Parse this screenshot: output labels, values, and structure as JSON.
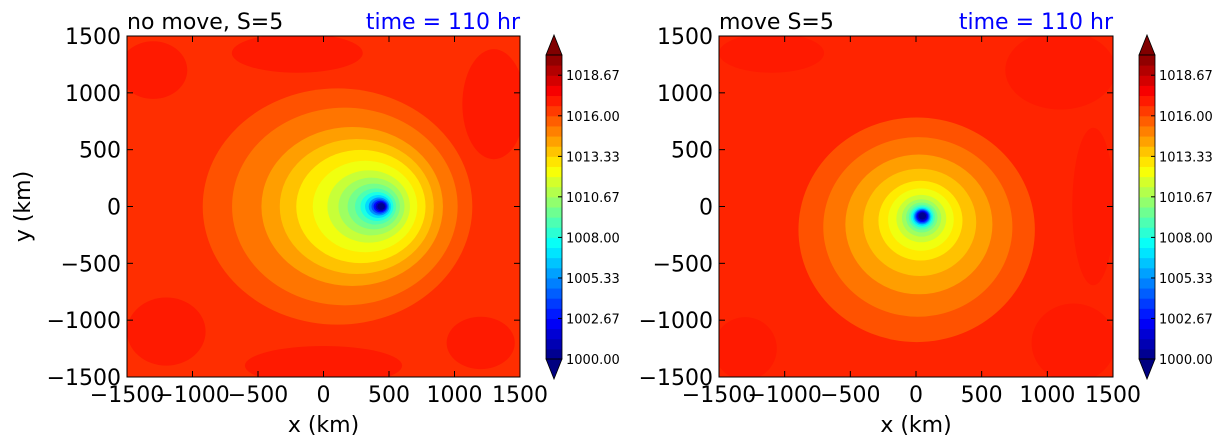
{
  "chart_data": [
    {
      "type": "heatmap",
      "title_left": "no move, S=5",
      "title_right": "time = 110 hr",
      "title_right_color": "#0000ff",
      "xlabel": "x (km)",
      "ylabel": "y (km)",
      "xlim": [
        -1500,
        1500
      ],
      "ylim": [
        -1500,
        1500
      ],
      "xticks": [
        -1500,
        -1000,
        -500,
        0,
        500,
        1000,
        1500
      ],
      "yticks": [
        -1500,
        -1000,
        -500,
        0,
        500,
        1000,
        1500
      ],
      "xtick_labels": [
        "−1500",
        "−1000",
        "−500",
        "0",
        "500",
        "1000",
        "1500"
      ],
      "ytick_labels": [
        "−1500",
        "−1000",
        "−500",
        "0",
        "500",
        "1000",
        "1500"
      ],
      "vortex_center": [
        450,
        0
      ],
      "colorbar": {
        "min": 1000.0,
        "max": 1020.0,
        "tick_values": [
          1000.0,
          1002.67,
          1005.33,
          1008.0,
          1010.67,
          1013.33,
          1016.0,
          1018.67
        ],
        "tick_labels": [
          "1000.00",
          "1002.67",
          "1005.33",
          "1008.00",
          "1010.67",
          "1013.33",
          "1016.00",
          "1018.67"
        ],
        "extend": "both",
        "colormap": "jet"
      }
    },
    {
      "type": "heatmap",
      "title_left": "move S=5",
      "title_right": "time = 110 hr",
      "title_right_color": "#0000ff",
      "xlabel": "x (km)",
      "ylabel": "",
      "xlim": [
        -1500,
        1500
      ],
      "ylim": [
        -1500,
        1500
      ],
      "xticks": [
        -1500,
        -1000,
        -500,
        0,
        500,
        1000,
        1500
      ],
      "yticks": [
        -1500,
        -1000,
        -500,
        0,
        500,
        1000,
        1500
      ],
      "xtick_labels": [
        "−1500",
        "−1000",
        "−500",
        "0",
        "500",
        "1000",
        "1500"
      ],
      "ytick_labels": [
        "−1500",
        "−1000",
        "−500",
        "0",
        "500",
        "1000",
        "1500"
      ],
      "vortex_center": [
        50,
        -80
      ],
      "colorbar": {
        "min": 1000.0,
        "max": 1020.0,
        "tick_values": [
          1000.0,
          1002.67,
          1005.33,
          1008.0,
          1010.67,
          1013.33,
          1016.0,
          1018.67
        ],
        "tick_labels": [
          "1000.00",
          "1002.67",
          "1005.33",
          "1008.00",
          "1010.67",
          "1013.33",
          "1016.00",
          "1018.67"
        ],
        "extend": "both",
        "colormap": "jet"
      }
    }
  ]
}
